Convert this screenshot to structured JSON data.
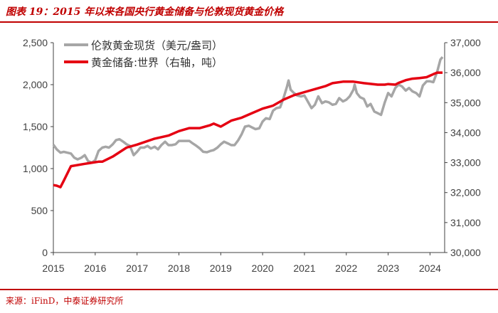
{
  "header": {
    "title": "图表 19：2015 年以来各国央行黄金储备与伦敦现货黄金价格"
  },
  "footer": {
    "source": "来源：iFinD，中泰证券研究所"
  },
  "colors": {
    "accent": "#c00000",
    "gold_series": "#a6a6a6",
    "reserve_series": "#e50012"
  },
  "chart_data": {
    "type": "line",
    "title": "图表 19：2015 年以来各国央行黄金储备与伦敦现货黄金价格",
    "x_ticks": [
      "2015",
      "2016",
      "2017",
      "2018",
      "2019",
      "2020",
      "2021",
      "2022",
      "2023",
      "2024"
    ],
    "xlim": [
      2015.0,
      2024.35
    ],
    "y_left": {
      "ylim": [
        0,
        2500
      ],
      "ticks": [
        "0",
        "500",
        "1,000",
        "1,500",
        "2,000",
        "2,500"
      ]
    },
    "y_right": {
      "ylim": [
        30000,
        37000
      ],
      "ticks": [
        "30,000",
        "31,000",
        "32,000",
        "33,000",
        "34,000",
        "35,000",
        "36,000",
        "37,000"
      ]
    },
    "grid": false,
    "legend_position": "top-left",
    "series": [
      {
        "name": "伦敦黄金现货（美元/盎司）",
        "axis": "left",
        "points": [
          [
            2015.0,
            1285
          ],
          [
            2015.08,
            1230
          ],
          [
            2015.17,
            1190
          ],
          [
            2015.25,
            1200
          ],
          [
            2015.33,
            1190
          ],
          [
            2015.42,
            1180
          ],
          [
            2015.5,
            1130
          ],
          [
            2015.58,
            1110
          ],
          [
            2015.67,
            1130
          ],
          [
            2015.75,
            1160
          ],
          [
            2015.83,
            1090
          ],
          [
            2015.92,
            1070
          ],
          [
            2016.0,
            1100
          ],
          [
            2016.08,
            1210
          ],
          [
            2016.17,
            1250
          ],
          [
            2016.25,
            1260
          ],
          [
            2016.33,
            1250
          ],
          [
            2016.42,
            1290
          ],
          [
            2016.5,
            1340
          ],
          [
            2016.58,
            1350
          ],
          [
            2016.67,
            1320
          ],
          [
            2016.75,
            1290
          ],
          [
            2016.83,
            1270
          ],
          [
            2016.92,
            1160
          ],
          [
            2017.0,
            1200
          ],
          [
            2017.08,
            1250
          ],
          [
            2017.17,
            1250
          ],
          [
            2017.25,
            1270
          ],
          [
            2017.33,
            1240
          ],
          [
            2017.42,
            1260
          ],
          [
            2017.5,
            1230
          ],
          [
            2017.58,
            1280
          ],
          [
            2017.67,
            1320
          ],
          [
            2017.75,
            1280
          ],
          [
            2017.83,
            1280
          ],
          [
            2017.92,
            1290
          ],
          [
            2018.0,
            1330
          ],
          [
            2018.08,
            1330
          ],
          [
            2018.17,
            1330
          ],
          [
            2018.25,
            1330
          ],
          [
            2018.33,
            1300
          ],
          [
            2018.42,
            1270
          ],
          [
            2018.5,
            1240
          ],
          [
            2018.58,
            1200
          ],
          [
            2018.67,
            1195
          ],
          [
            2018.75,
            1210
          ],
          [
            2018.83,
            1220
          ],
          [
            2018.92,
            1250
          ],
          [
            2019.0,
            1290
          ],
          [
            2019.08,
            1320
          ],
          [
            2019.17,
            1300
          ],
          [
            2019.25,
            1280
          ],
          [
            2019.33,
            1280
          ],
          [
            2019.42,
            1340
          ],
          [
            2019.5,
            1410
          ],
          [
            2019.58,
            1500
          ],
          [
            2019.67,
            1510
          ],
          [
            2019.75,
            1490
          ],
          [
            2019.83,
            1470
          ],
          [
            2019.92,
            1480
          ],
          [
            2020.0,
            1560
          ],
          [
            2020.08,
            1600
          ],
          [
            2020.17,
            1590
          ],
          [
            2020.25,
            1690
          ],
          [
            2020.33,
            1720
          ],
          [
            2020.42,
            1730
          ],
          [
            2020.5,
            1840
          ],
          [
            2020.58,
            1970
          ],
          [
            2020.62,
            2050
          ],
          [
            2020.67,
            1940
          ],
          [
            2020.75,
            1900
          ],
          [
            2020.83,
            1870
          ],
          [
            2020.92,
            1860
          ],
          [
            2021.0,
            1870
          ],
          [
            2021.08,
            1800
          ],
          [
            2021.17,
            1720
          ],
          [
            2021.25,
            1760
          ],
          [
            2021.33,
            1860
          ],
          [
            2021.42,
            1780
          ],
          [
            2021.5,
            1800
          ],
          [
            2021.58,
            1790
          ],
          [
            2021.67,
            1760
          ],
          [
            2021.75,
            1770
          ],
          [
            2021.83,
            1840
          ],
          [
            2021.92,
            1800
          ],
          [
            2022.0,
            1820
          ],
          [
            2022.08,
            1860
          ],
          [
            2022.17,
            1940
          ],
          [
            2022.2,
            2000
          ],
          [
            2022.25,
            1900
          ],
          [
            2022.33,
            1850
          ],
          [
            2022.42,
            1830
          ],
          [
            2022.5,
            1740
          ],
          [
            2022.58,
            1770
          ],
          [
            2022.67,
            1680
          ],
          [
            2022.75,
            1660
          ],
          [
            2022.83,
            1640
          ],
          [
            2022.92,
            1790
          ],
          [
            2023.0,
            1900
          ],
          [
            2023.08,
            1860
          ],
          [
            2023.17,
            1960
          ],
          [
            2023.25,
            2000
          ],
          [
            2023.33,
            1980
          ],
          [
            2023.42,
            1930
          ],
          [
            2023.5,
            1960
          ],
          [
            2023.58,
            1920
          ],
          [
            2023.67,
            1900
          ],
          [
            2023.75,
            1860
          ],
          [
            2023.83,
            1990
          ],
          [
            2023.92,
            2040
          ],
          [
            2024.0,
            2040
          ],
          [
            2024.08,
            2030
          ],
          [
            2024.17,
            2150
          ],
          [
            2024.25,
            2300
          ],
          [
            2024.3,
            2330
          ]
        ]
      },
      {
        "name": "黄金储备:世界（右轴，吨）",
        "axis": "right",
        "points": [
          [
            2015.0,
            32250
          ],
          [
            2015.08,
            32230
          ],
          [
            2015.17,
            32180
          ],
          [
            2015.25,
            32400
          ],
          [
            2015.42,
            32880
          ],
          [
            2015.75,
            32960
          ],
          [
            2016.08,
            33030
          ],
          [
            2016.17,
            33030
          ],
          [
            2016.42,
            33200
          ],
          [
            2016.75,
            33500
          ],
          [
            2017.0,
            33600
          ],
          [
            2017.42,
            33800
          ],
          [
            2017.75,
            33900
          ],
          [
            2018.0,
            34050
          ],
          [
            2018.25,
            34150
          ],
          [
            2018.5,
            34150
          ],
          [
            2018.75,
            34250
          ],
          [
            2018.83,
            34300
          ],
          [
            2019.0,
            34200
          ],
          [
            2019.25,
            34400
          ],
          [
            2019.5,
            34500
          ],
          [
            2019.75,
            34650
          ],
          [
            2020.0,
            34800
          ],
          [
            2020.25,
            34900
          ],
          [
            2020.5,
            35100
          ],
          [
            2020.75,
            35250
          ],
          [
            2021.0,
            35350
          ],
          [
            2021.25,
            35450
          ],
          [
            2021.5,
            35550
          ],
          [
            2021.67,
            35650
          ],
          [
            2021.92,
            35700
          ],
          [
            2022.17,
            35700
          ],
          [
            2022.42,
            35650
          ],
          [
            2022.75,
            35600
          ],
          [
            2022.92,
            35600
          ],
          [
            2023.0,
            35620
          ],
          [
            2023.17,
            35600
          ],
          [
            2023.25,
            35660
          ],
          [
            2023.33,
            35700
          ],
          [
            2023.42,
            35750
          ],
          [
            2023.58,
            35800
          ],
          [
            2023.75,
            35820
          ],
          [
            2023.92,
            35850
          ],
          [
            2024.0,
            35900
          ],
          [
            2024.08,
            35950
          ],
          [
            2024.17,
            36000
          ],
          [
            2024.3,
            36000
          ]
        ]
      }
    ]
  }
}
